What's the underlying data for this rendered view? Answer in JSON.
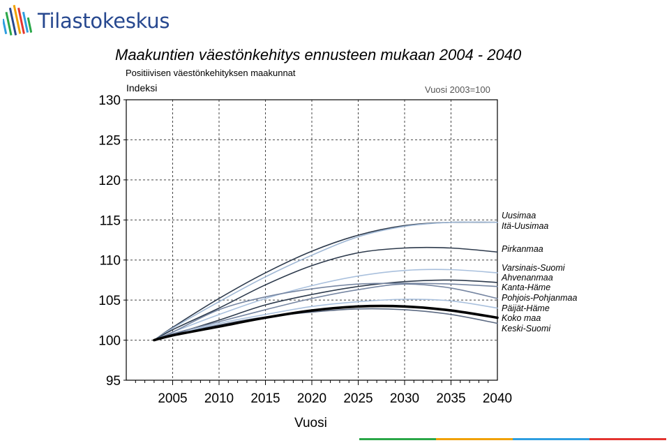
{
  "brand": {
    "name": "Tilastokeskus",
    "logo_icon": "tilastokeskus-logo-icon"
  },
  "footer_colors": [
    "#2aa748",
    "#f0a000",
    "#2e9ee0",
    "#e3342f"
  ],
  "chart_data": {
    "type": "line",
    "title": "Maakuntien väestönkehitys ennusteen mukaan 2004 - 2040",
    "subtitle": "Positiivisen väestönkehityksen maakunnat",
    "ylabel": "Indeksi",
    "note": "Vuosi 2003=100",
    "xlabel": "Vuosi",
    "xlim": [
      2000,
      2040
    ],
    "ylim": [
      95,
      130
    ],
    "xticks": [
      2005,
      2010,
      2015,
      2020,
      2025,
      2030,
      2035,
      2040
    ],
    "yticks": [
      95,
      100,
      105,
      110,
      115,
      120,
      125,
      130
    ],
    "grid": true,
    "legend": "right-inline",
    "x": [
      2003,
      2005,
      2010,
      2015,
      2020,
      2025,
      2030,
      2035,
      2040
    ],
    "series": [
      {
        "name": "Uusimaa",
        "color": "#2d3a4c",
        "width": 1.6,
        "values": [
          100,
          101.6,
          105.2,
          108.4,
          111.1,
          113.1,
          114.3,
          114.7,
          114.7
        ]
      },
      {
        "name": "Itä-Uusimaa",
        "color": "#9fb7d4",
        "width": 1.6,
        "values": [
          100,
          101.5,
          104.8,
          107.9,
          110.6,
          112.9,
          114.2,
          114.7,
          114.7
        ]
      },
      {
        "name": "Pirkanmaa",
        "color": "#2d3a4c",
        "width": 1.6,
        "values": [
          100,
          101.3,
          104.0,
          106.9,
          109.3,
          110.9,
          111.5,
          111.5,
          111.0
        ]
      },
      {
        "name": "Varsinais-Suomi",
        "color": "#a9c0dd",
        "width": 1.6,
        "values": [
          100,
          101.0,
          103.2,
          105.2,
          106.8,
          108.0,
          108.7,
          108.8,
          108.4
        ]
      },
      {
        "name": "Ahvenanmaa",
        "color": "#2d3a4c",
        "width": 1.6,
        "values": [
          100,
          100.7,
          102.5,
          104.4,
          105.7,
          106.7,
          107.3,
          107.5,
          107.2
        ]
      },
      {
        "name": "Kanta-Häme",
        "color": "#7585a1",
        "width": 1.6,
        "values": [
          100,
          101.0,
          103.8,
          105.4,
          106.4,
          107.0,
          107.1,
          107.0,
          106.7
        ]
      },
      {
        "name": "Pohjois-Pohjanmaa",
        "color": "#7585a1",
        "width": 1.6,
        "values": [
          100,
          100.8,
          102.3,
          103.8,
          105.2,
          106.3,
          107.0,
          106.5,
          105.2
        ]
      },
      {
        "name": "Päijät-Häme",
        "color": "#a9c0dd",
        "width": 1.6,
        "values": [
          100,
          100.6,
          102.1,
          103.2,
          104.2,
          104.8,
          105.1,
          104.9,
          104.0
        ]
      },
      {
        "name": "Koko maa",
        "color": "#000000",
        "width": 3.6,
        "values": [
          100,
          100.6,
          101.7,
          102.8,
          103.7,
          104.2,
          104.2,
          103.7,
          102.8
        ]
      },
      {
        "name": "Keski-Suomi",
        "color": "#5c6a82",
        "width": 1.6,
        "values": [
          100,
          100.6,
          101.9,
          102.9,
          103.5,
          103.9,
          103.8,
          103.2,
          102.1
        ]
      }
    ]
  }
}
